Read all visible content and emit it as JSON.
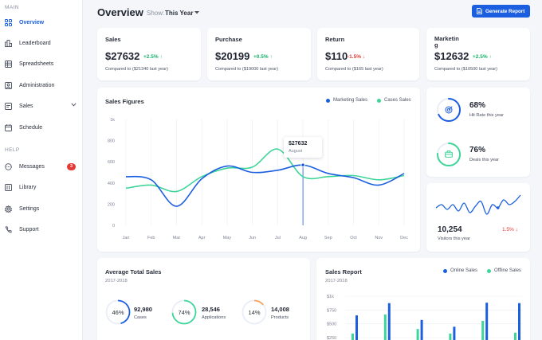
{
  "sidebar": {
    "main_label": "MAIN",
    "help_label": "HELP",
    "items": [
      {
        "label": "Overview",
        "icon": "grid-icon"
      },
      {
        "label": "Leaderboard",
        "icon": "leaderboard-icon"
      },
      {
        "label": "Spreadsheets",
        "icon": "spreadsheet-icon"
      },
      {
        "label": "Administration",
        "icon": "admin-icon"
      },
      {
        "label": "Sales",
        "icon": "sales-icon"
      },
      {
        "label": "Schedule",
        "icon": "calendar-icon"
      }
    ],
    "help_items": [
      {
        "label": "Messages",
        "icon": "chat-icon",
        "badge": "3"
      },
      {
        "label": "Library",
        "icon": "library-icon"
      },
      {
        "label": "Settings",
        "icon": "gear-icon"
      },
      {
        "label": "Support",
        "icon": "phone-icon"
      }
    ]
  },
  "header": {
    "title": "Overview",
    "show_label": "Show:",
    "show_value": "This Year",
    "generate_button": "Generate Report"
  },
  "stats": [
    {
      "title": "Sales",
      "value": "$27632",
      "change": "+2.5%",
      "direction": "up",
      "compare": "Compared to ($21340 last year)"
    },
    {
      "title": "Purchase",
      "value": "$20199",
      "change": "+0.5%",
      "direction": "up",
      "compare": "Compared to ($19000 last year)"
    },
    {
      "title": "Return",
      "value": "$110",
      "change": "-1.5%",
      "direction": "down",
      "compare": "Compared to ($165 last year)"
    },
    {
      "title": "Marketin\ng",
      "value": "$12632",
      "change": "+2.5%",
      "direction": "up",
      "compare": "Compared to ($10500 last year)"
    }
  ],
  "sales_figures": {
    "title": "Sales Figures",
    "tooltip": {
      "value": "$27632",
      "label": "August"
    }
  },
  "chart_data": {
    "type": "line",
    "categories": [
      "Jan",
      "Feb",
      "Mar",
      "Apr",
      "May",
      "Jun",
      "Jul",
      "Aug",
      "Sep",
      "Oct",
      "Nov",
      "Dec"
    ],
    "y_ticks": [
      "0",
      "200",
      "400",
      "600",
      "800",
      "1k"
    ],
    "ylim": [
      0,
      1000
    ],
    "series": [
      {
        "name": "Marketing Sales",
        "color": "#1b5fe0",
        "values": [
          460,
          430,
          180,
          440,
          560,
          500,
          520,
          570,
          490,
          450,
          380,
          490
        ]
      },
      {
        "name": "Cases Sales",
        "color": "#3dd598",
        "values": [
          350,
          380,
          320,
          460,
          540,
          550,
          720,
          460,
          460,
          470,
          430,
          470
        ]
      }
    ],
    "highlight_index": 7,
    "legend_position": "top-right",
    "grid": "vertical"
  },
  "kpis": [
    {
      "value": "68%",
      "label": "Hit Rate this year",
      "percent": 68,
      "color": "#1b5fe0",
      "icon": "target-icon"
    },
    {
      "value": "76%",
      "label": "Deals this year",
      "percent": 76,
      "color": "#3dd598",
      "icon": "briefcase-icon"
    }
  ],
  "visitors": {
    "value": "10,254",
    "label": "Visitors this year",
    "change": "1.5%",
    "direction": "down",
    "sparkline": [
      22,
      24,
      21,
      24,
      20,
      25,
      19,
      23,
      26,
      18,
      24,
      22,
      27,
      24,
      26,
      30
    ]
  },
  "avg_sales": {
    "title": "Average Total Sales",
    "period": "2017-2018",
    "rings": [
      {
        "percent": 46,
        "percent_label": "46%",
        "number": "92,980",
        "label": "Cases",
        "color": "#1b5fe0"
      },
      {
        "percent": 74,
        "percent_label": "74%",
        "number": "28,546",
        "label": "Applications",
        "color": "#3dd598"
      },
      {
        "percent": 14,
        "percent_label": "14%",
        "number": "14,008",
        "label": "Products",
        "color": "#f5a15b"
      }
    ]
  },
  "sales_report": {
    "title": "Sales Report",
    "period": "2017-2018",
    "legend": [
      {
        "name": "Online Sales",
        "color": "#1b5fe0"
      },
      {
        "name": "Offline Sales",
        "color": "#3dd598"
      }
    ],
    "y_ticks": [
      "$1k",
      "$750",
      "$500",
      "$250"
    ],
    "bars_online": [
      0.7,
      0.97,
      0.6,
      0.45,
      0.98,
      0.97
    ],
    "bars_offline": [
      0.3,
      0.72,
      0.4,
      0.3,
      0.58,
      0.32
    ]
  }
}
